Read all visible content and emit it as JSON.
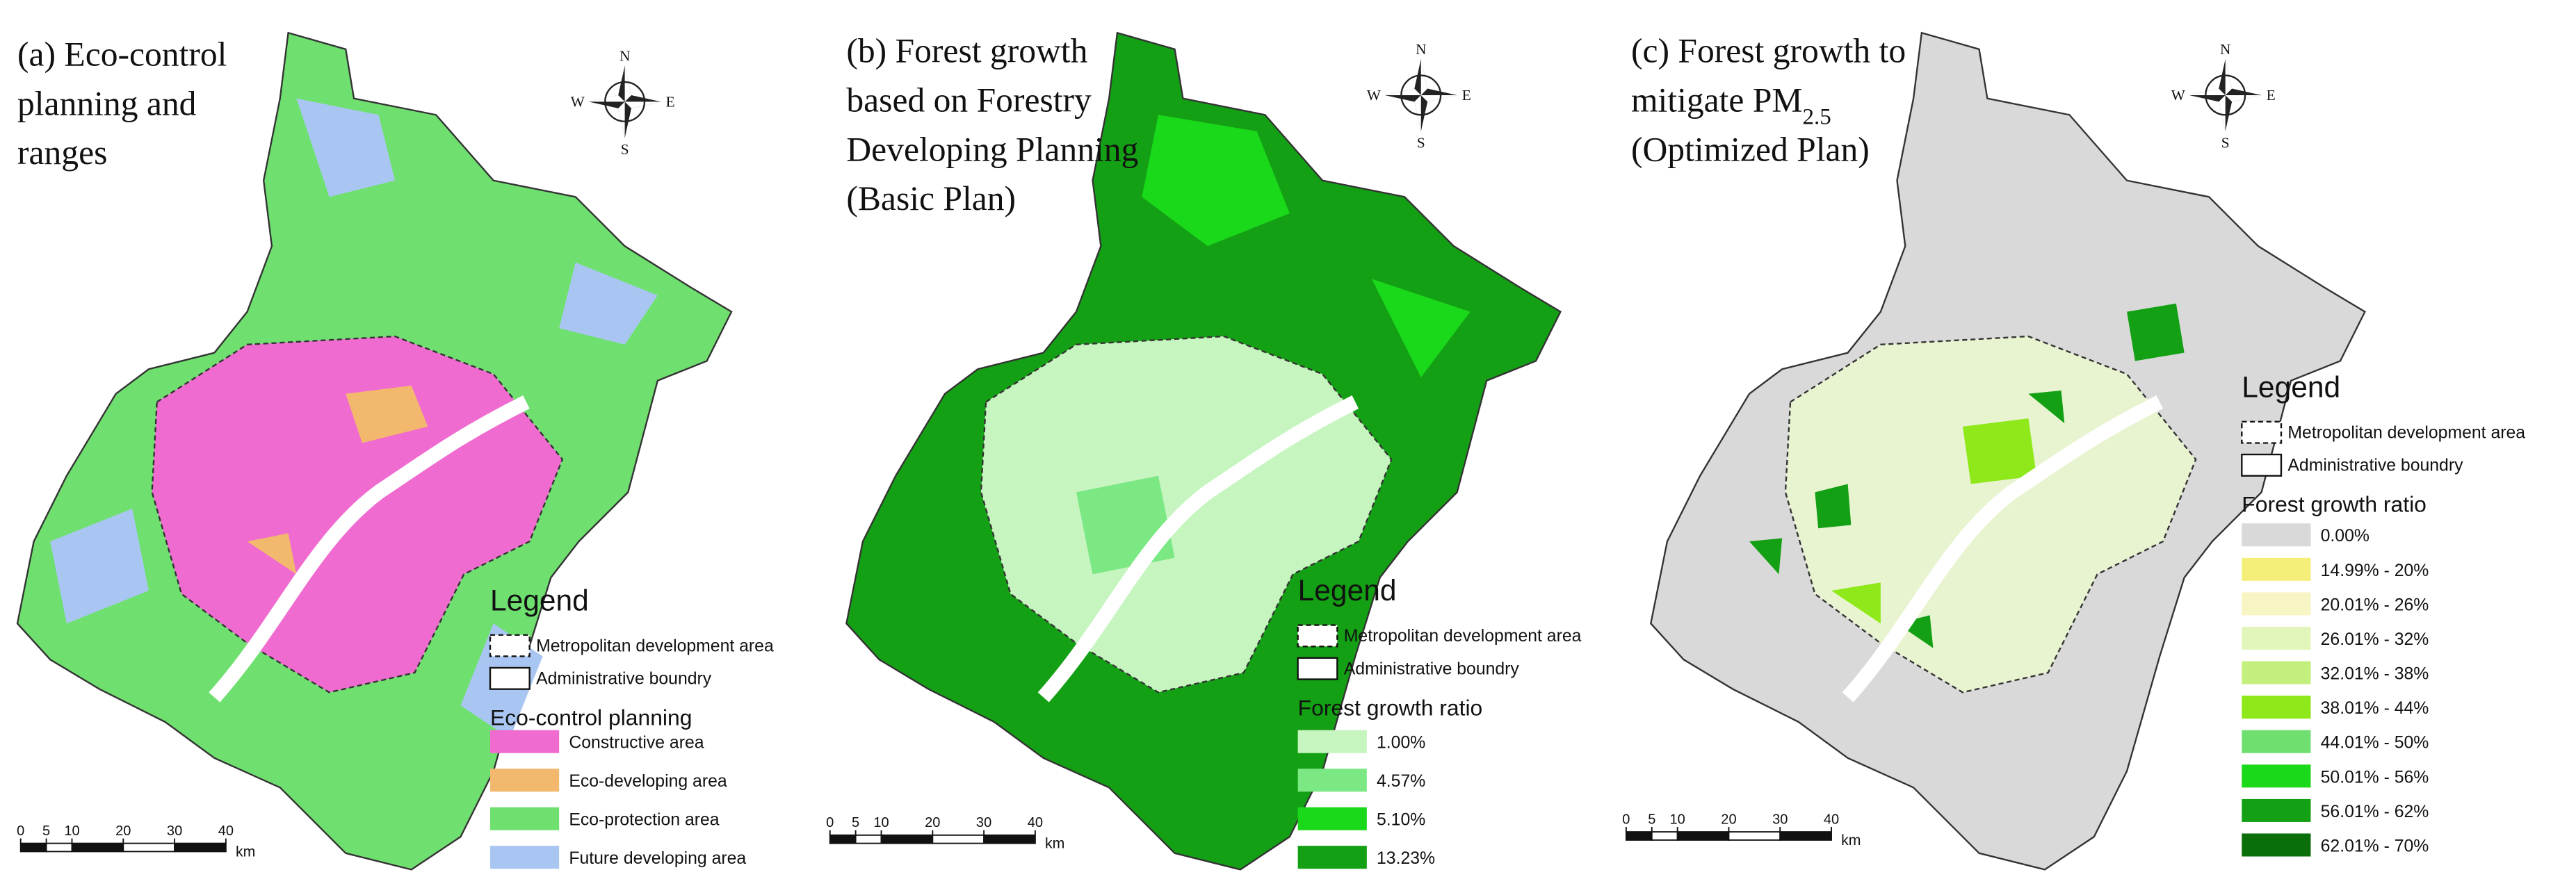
{
  "panels": [
    {
      "title_lines": [
        [
          {
            "text": "(a) Eco-control"
          }
        ],
        [
          {
            "text": "planning and"
          }
        ],
        [
          {
            "text": "ranges"
          }
        ]
      ],
      "compass": {
        "n": "N",
        "s": "S",
        "e": "E",
        "w": "W"
      },
      "legend": {
        "title": "Legend",
        "boundaries": [
          {
            "label": "Metropolitan development area",
            "style": "dashed"
          },
          {
            "label": "Administrative boundry",
            "style": "solid"
          }
        ],
        "section_title": "Eco-control planning",
        "items": [
          {
            "label": "Constructive area",
            "color": "#f06bd0"
          },
          {
            "label": "Eco-developing area",
            "color": "#f2b86e"
          },
          {
            "label": "Eco-protection area",
            "color": "#6fe070"
          },
          {
            "label": "Future developing area",
            "color": "#a9c6f2"
          }
        ]
      },
      "scale": {
        "xlim": [
          0,
          40
        ],
        "ticks": [
          0,
          5,
          10,
          20,
          30,
          40
        ],
        "unit": "km"
      }
    },
    {
      "title_lines": [
        [
          {
            "text": "(b) Forest growth"
          }
        ],
        [
          {
            "text": "based on Forestry"
          }
        ],
        [
          {
            "text": "Developing Planning"
          }
        ],
        [
          {
            "text": "(Basic Plan)"
          }
        ]
      ],
      "compass": {
        "n": "N",
        "s": "S",
        "e": "E",
        "w": "W"
      },
      "legend": {
        "title": "Legend",
        "boundaries": [
          {
            "label": "Metropolitan development area",
            "style": "dashed"
          },
          {
            "label": "Administrative boundry",
            "style": "solid"
          }
        ],
        "section_title": "Forest growth ratio",
        "items": [
          {
            "label": "1.00%",
            "color": "#c6f5c0"
          },
          {
            "label": "4.57%",
            "color": "#7be883"
          },
          {
            "label": "5.10%",
            "color": "#1ad81a"
          },
          {
            "label": "13.23%",
            "color": "#14a014"
          }
        ]
      },
      "scale": {
        "xlim": [
          0,
          40
        ],
        "ticks": [
          0,
          5,
          10,
          20,
          30,
          40
        ],
        "unit": "km"
      }
    },
    {
      "title_lines": [
        [
          {
            "text": "(c) Forest growth to"
          }
        ],
        [
          {
            "text": "mitigate PM"
          },
          {
            "text": "2.5",
            "sub": true
          }
        ],
        [
          {
            "text": "(Optimized Plan)"
          }
        ]
      ],
      "compass": {
        "n": "N",
        "s": "S",
        "e": "E",
        "w": "W"
      },
      "legend": {
        "title": "Legend",
        "boundaries": [
          {
            "label": "Metropolitan development area",
            "style": "dashed"
          },
          {
            "label": "Administrative boundry",
            "style": "solid"
          }
        ],
        "section_title": "Forest growth ratio",
        "items": [
          {
            "label": "0.00%",
            "color": "#d9d9d9"
          },
          {
            "label": "14.99% - 20%",
            "color": "#f5ef7a"
          },
          {
            "label": "20.01% - 26%",
            "color": "#f7f5c4"
          },
          {
            "label": "26.01% - 32%",
            "color": "#e2f5bb"
          },
          {
            "label": "32.01% - 38%",
            "color": "#c3f07c"
          },
          {
            "label": "38.01% - 44%",
            "color": "#8ee81a"
          },
          {
            "label": "44.01% - 50%",
            "color": "#6fe070"
          },
          {
            "label": "50.01% - 56%",
            "color": "#1ad81a"
          },
          {
            "label": "56.01% - 62%",
            "color": "#14a014"
          },
          {
            "label": "62.01% - 70%",
            "color": "#0a6e0a"
          }
        ]
      },
      "scale": {
        "xlim": [
          0,
          40
        ],
        "ticks": [
          0,
          5,
          10,
          20,
          30,
          40
        ],
        "unit": "km"
      }
    }
  ]
}
